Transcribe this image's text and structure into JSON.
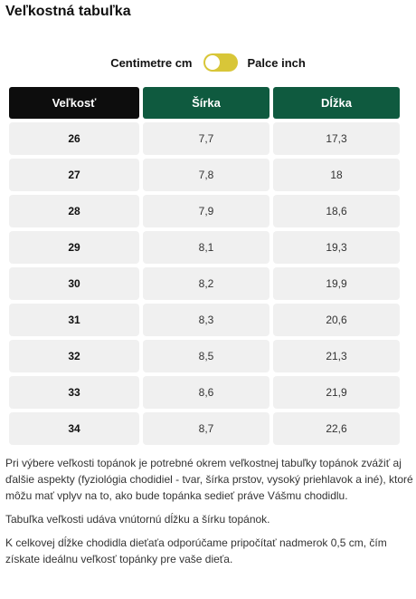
{
  "title": "Veľkostná tabuľka",
  "unit_toggle": {
    "left_label": "Centimetre cm",
    "right_label": "Palce inch",
    "track_color": "#d8c638"
  },
  "colors": {
    "size_header_bg": "#0d0d0d",
    "header_bg": "#0f5a3f",
    "cell_bg": "#f0f0f0"
  },
  "table": {
    "headers": [
      "Veľkosť",
      "Šírka",
      "Dĺžka"
    ],
    "rows": [
      [
        "26",
        "7,7",
        "17,3"
      ],
      [
        "27",
        "7,8",
        "18"
      ],
      [
        "28",
        "7,9",
        "18,6"
      ],
      [
        "29",
        "8,1",
        "19,3"
      ],
      [
        "30",
        "8,2",
        "19,9"
      ],
      [
        "31",
        "8,3",
        "20,6"
      ],
      [
        "32",
        "8,5",
        "21,3"
      ],
      [
        "33",
        "8,6",
        "21,9"
      ],
      [
        "34",
        "8,7",
        "22,6"
      ]
    ]
  },
  "notes": [
    "Pri výbere veľkosti topánok je potrebné okrem veľkostnej tabuľky topánok zvážiť aj ďalšie aspekty (fyziológia chodidiel - tvar, šírka prstov, vysoký priehlavok a iné), ktoré môžu mať vplyv na to, ako bude topánka sedieť práve Vášmu chodidlu.",
    "Tabuľka veľkosti udáva vnútornú dĺžku a šírku topánok.",
    "K celkovej dĺžke chodidla dieťaťa odporúčame pripočítať nadmerok 0,5 cm, čím získate ideálnu veľkosť topánky pre vaše dieťa."
  ]
}
